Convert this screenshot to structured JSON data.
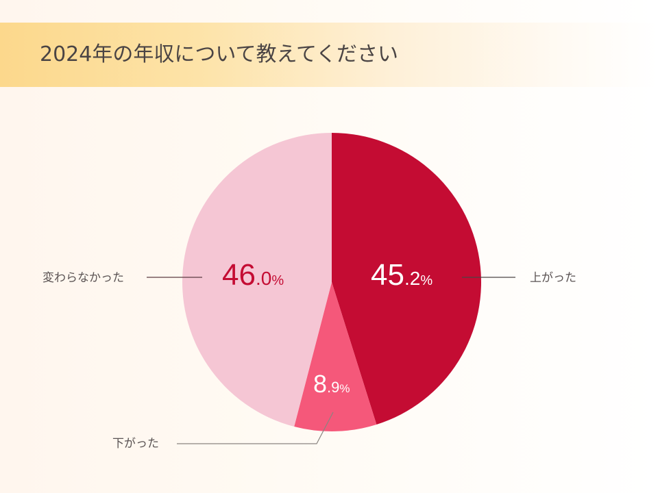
{
  "header": {
    "title": "2024年の年収について教えてください"
  },
  "chart_data": {
    "type": "pie",
    "title": "2024年の年収について教えてください",
    "categories": [
      "上がった",
      "下がった",
      "変わらなかった"
    ],
    "values": [
      45.2,
      8.9,
      46.0
    ],
    "unit": "%",
    "start_angle": "12 o'clock, clockwise",
    "colors": [
      "#c40c33",
      "#f5587a",
      "#f5c6d4"
    ],
    "labels": {
      "up": {
        "name": "上がった",
        "int": "45",
        "dec": ".2",
        "sym": "%",
        "color": "#ffffff"
      },
      "down": {
        "name": "下がった",
        "int": "8",
        "dec": ".9",
        "sym": "%",
        "color": "#ffffff"
      },
      "same": {
        "name": "変わらなかった",
        "int": "46",
        "dec": ".0",
        "sym": "%",
        "color": "#c40c33"
      }
    }
  }
}
